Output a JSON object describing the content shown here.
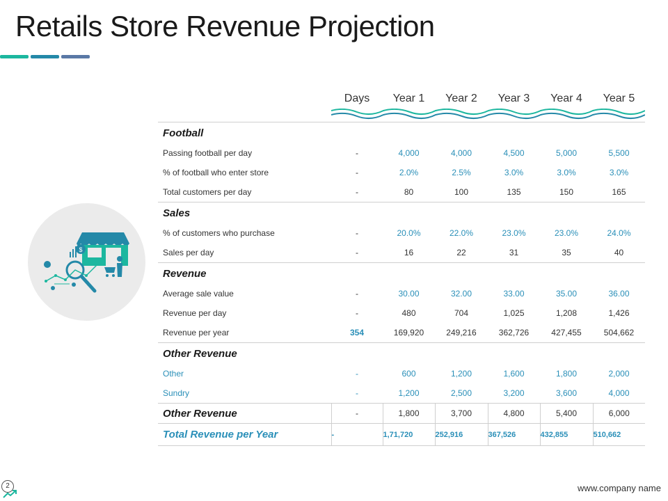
{
  "title": "Retails Store Revenue Projection",
  "colors": {
    "teal": "#1cb79f",
    "blue": "#2489a8",
    "slate": "#5a79a6",
    "value_blue": "#2a8fb8"
  },
  "icon": "retail-store-analytics-icon",
  "table": {
    "headers": [
      "Days",
      "Year 1",
      "Year 2",
      "Year 3",
      "Year 4",
      "Year 5"
    ],
    "sections": [
      {
        "label": "Football",
        "rows": [
          {
            "label": "Passing football per day",
            "days": "-",
            "values": [
              "4,000",
              "4,000",
              "4,500",
              "5,000",
              "5,500"
            ]
          },
          {
            "label": "% of football who enter store",
            "days": "-",
            "values": [
              "2.0%",
              "2.5%",
              "3.0%",
              "3.0%",
              "3.0%"
            ]
          },
          {
            "label": "Total customers per day",
            "days": "-",
            "values": [
              "80",
              "100",
              "135",
              "150",
              "165"
            ]
          }
        ]
      },
      {
        "label": "Sales",
        "rows": [
          {
            "label": "% of customers who purchase",
            "days": "-",
            "values": [
              "20.0%",
              "22.0%",
              "23.0%",
              "23.0%",
              "24.0%"
            ]
          },
          {
            "label": "Sales per day",
            "days": "-",
            "values": [
              "16",
              "22",
              "31",
              "35",
              "40"
            ]
          }
        ]
      },
      {
        "label": "Revenue",
        "rows": [
          {
            "label": "Average  sale value",
            "days": "-",
            "values": [
              "30.00",
              "32.00",
              "33.00",
              "35.00",
              "36.00"
            ]
          },
          {
            "label": "Revenue  per day",
            "days": "-",
            "values": [
              "480",
              "704",
              "1,025",
              "1,208",
              "1,426"
            ]
          },
          {
            "label": "Revenue  per year",
            "days": "354",
            "values": [
              "169,920",
              "249,216",
              "362,726",
              "427,455",
              "504,662"
            ]
          }
        ]
      },
      {
        "label": "Other Revenue",
        "rows": [
          {
            "label": "Other",
            "days": "-",
            "values": [
              "600",
              "1,200",
              "1,600",
              "1,800",
              "2,000"
            ]
          },
          {
            "label": "Sundry",
            "days": "-",
            "values": [
              "1,200",
              "2,500",
              "3,200",
              "3,600",
              "4,000"
            ]
          }
        ]
      }
    ],
    "other_revenue_total": {
      "label": "Other Revenue",
      "days": "-",
      "values": [
        "1,800",
        "3,700",
        "4,800",
        "5,400",
        "6,000"
      ]
    },
    "total_revenue": {
      "label": "Total Revenue per Year",
      "days": "-",
      "values": [
        "1,71,720",
        "252,916",
        "367,526",
        "432,855",
        "510,662"
      ]
    }
  },
  "page_number": "2",
  "footer": "www.company name"
}
